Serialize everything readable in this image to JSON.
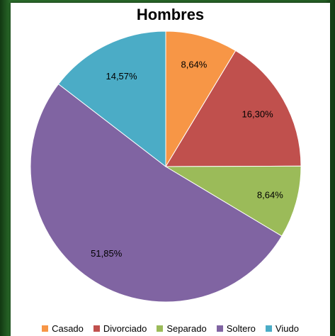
{
  "chart_data": {
    "type": "pie",
    "title": "Hombres",
    "categories": [
      "Casado",
      "Divorciado",
      "Separado",
      "Soltero",
      "Viudo"
    ],
    "values": [
      8.64,
      16.3,
      8.64,
      51.85,
      14.57
    ],
    "labels": [
      "8,64%",
      "16,30%",
      "8,64%",
      "51,85%",
      "14,57%"
    ],
    "colors": [
      "#F79646",
      "#C0504D",
      "#9BBB59",
      "#8064A2",
      "#4BACC6"
    ],
    "legend_position": "bottom"
  }
}
